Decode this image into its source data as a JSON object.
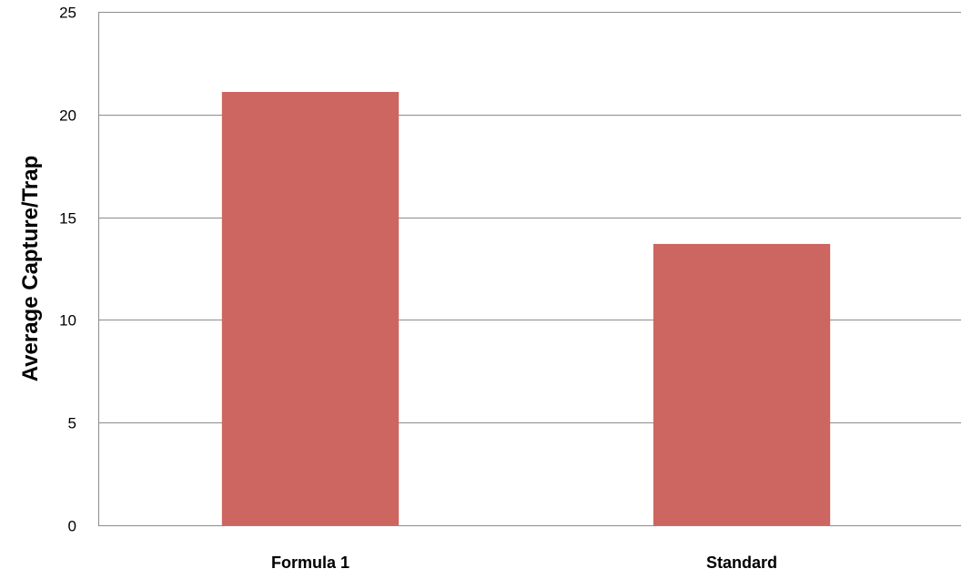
{
  "chart_data": {
    "type": "bar",
    "title": "",
    "xlabel": "",
    "ylabel": "Average  Capture/Trap",
    "categories": [
      "Formula 1",
      "Standard"
    ],
    "series": [
      {
        "values": [
          21.1,
          13.7
        ]
      }
    ],
    "ylim": [
      0,
      25
    ],
    "yticks": [
      0,
      5,
      10,
      15,
      20,
      25
    ],
    "grid": true,
    "legend": "none",
    "bar_color": "#cd6660",
    "grid_color": "#8c8c8c"
  }
}
